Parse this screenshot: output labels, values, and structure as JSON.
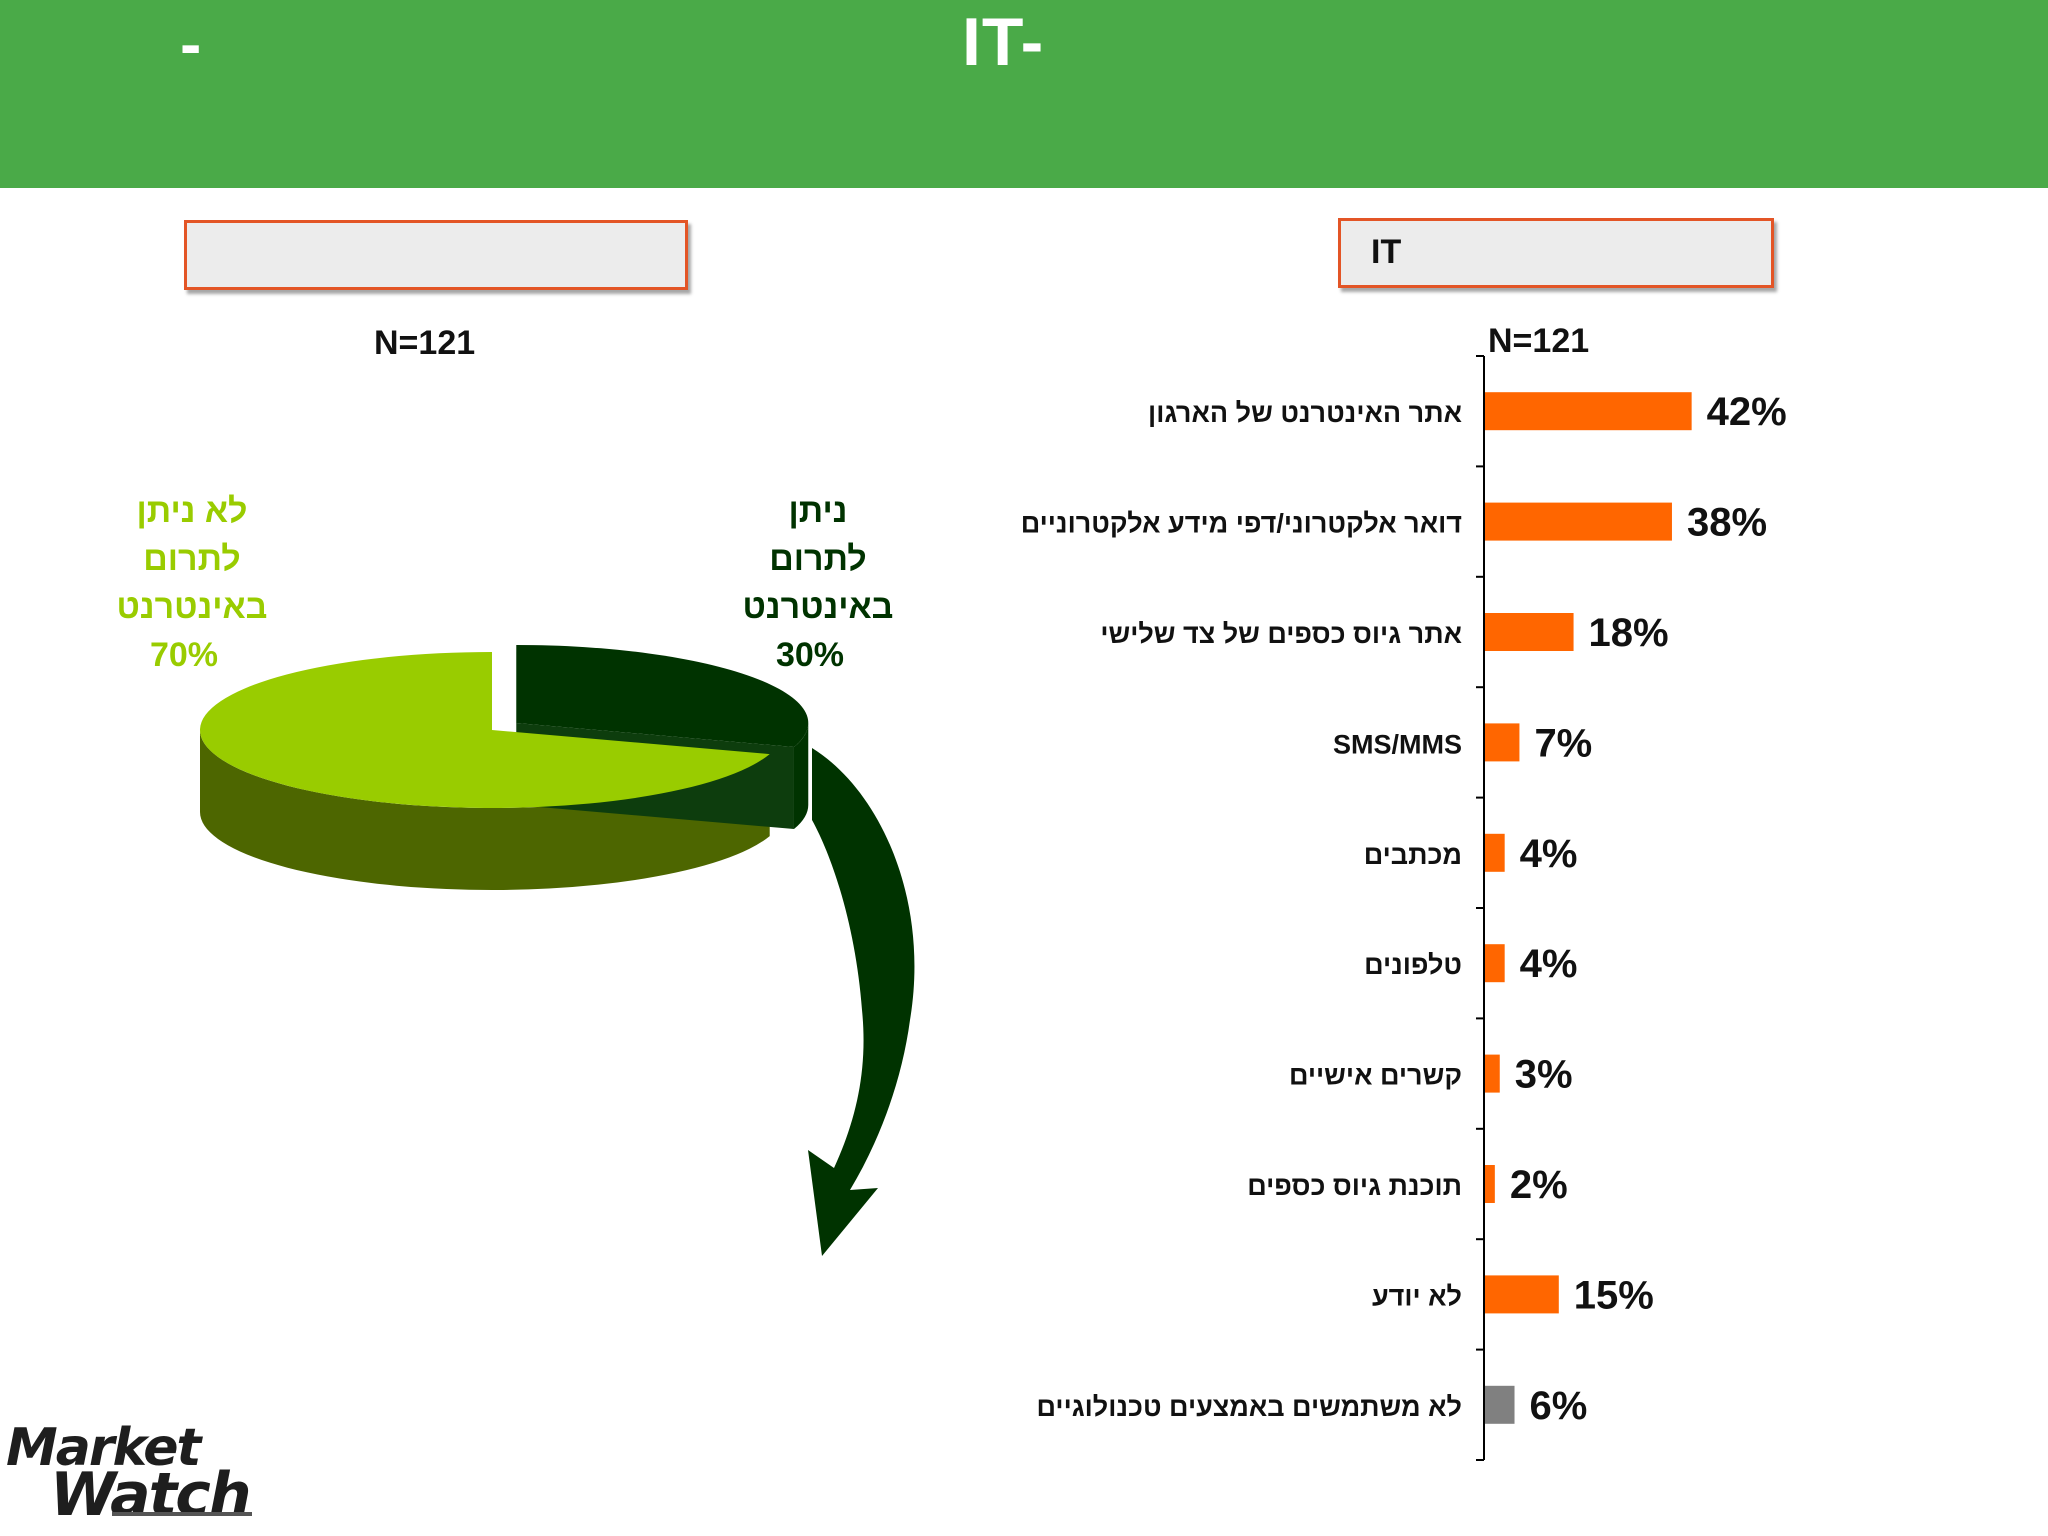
{
  "header": {
    "dash": "-",
    "title": "IT-"
  },
  "left_panel": {
    "title_box": "",
    "n_label": "N=121"
  },
  "right_panel": {
    "title_box": "IT",
    "n_label": "N=121"
  },
  "colors": {
    "header_bg": "#4aaa48",
    "bar": "#ff6600",
    "bar_other": "#808080",
    "pie_light": "#99cc00",
    "pie_light_side": "#4d6600",
    "pie_dark": "#003300",
    "arrow": "#003300"
  },
  "logo": {
    "line1": "Market",
    "line2": "Watch"
  },
  "chart_data": [
    {
      "type": "pie",
      "slices": [
        {
          "name": "ניתן לתרום באינטרנט",
          "label_lines": [
            "ניתן",
            "לתרום",
            "באינטרנט"
          ],
          "value": 30,
          "value_label": "30%",
          "color": "#003300"
        },
        {
          "name": "לא ניתן לתרום באינטרנט",
          "label_lines": [
            "לא ניתן",
            "לתרום",
            "באינטרנט"
          ],
          "value": 70,
          "value_label": "70%",
          "color": "#99cc00"
        }
      ]
    },
    {
      "type": "bar",
      "orientation": "horizontal",
      "categories": [
        "אתר האינטרנט של הארגון",
        "דואר אלקטרוני/דפי מידע אלקטרוניים",
        "אתר גיוס כספים של צד שלישי",
        "SMS/MMS",
        "מכתבים",
        "טלפונים",
        "קשרים אישיים",
        "תוכנת גיוס כספים",
        "לא יודע",
        "לא משתמשים באמצעים טכנולוגיים"
      ],
      "values": [
        42,
        38,
        18,
        7,
        4,
        4,
        3,
        2,
        15,
        6
      ],
      "value_labels": [
        "42%",
        "38%",
        "18%",
        "7%",
        "4%",
        "4%",
        "3%",
        "2%",
        "15%",
        "6%"
      ],
      "bar_colors": [
        "#ff6600",
        "#ff6600",
        "#ff6600",
        "#ff6600",
        "#ff6600",
        "#ff6600",
        "#ff6600",
        "#ff6600",
        "#ff6600",
        "#808080"
      ]
    }
  ]
}
